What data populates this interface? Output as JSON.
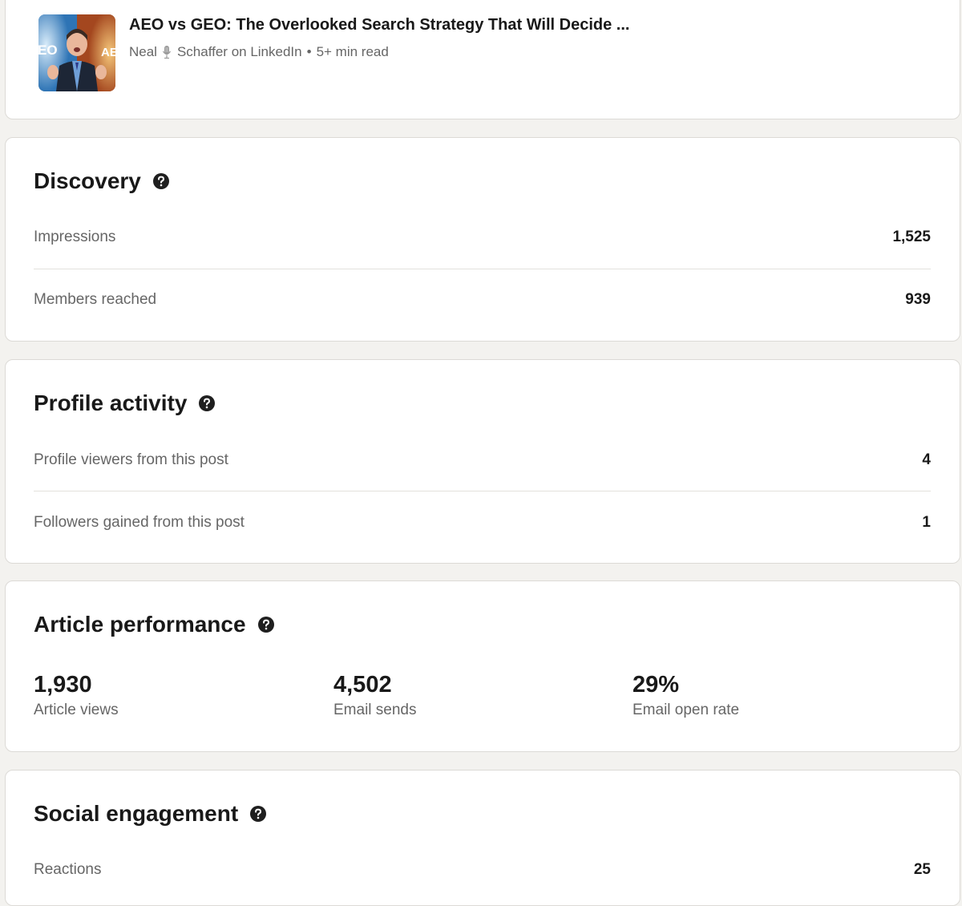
{
  "article": {
    "title": "AEO vs GEO: The Overlooked Search Strategy That Will Decide ...",
    "author_first": "Neal",
    "author_rest": "Schaffer on LinkedIn",
    "separator": "•",
    "read_time": "5+ min read",
    "thumbnail_left_text": "EO",
    "thumbnail_right_text": "AE"
  },
  "discovery": {
    "title": "Discovery",
    "rows": [
      {
        "label": "Impressions",
        "value": "1,525"
      },
      {
        "label": "Members reached",
        "value": "939"
      }
    ]
  },
  "profile_activity": {
    "title": "Profile activity",
    "rows": [
      {
        "label": "Profile viewers from this post",
        "value": "4"
      },
      {
        "label": "Followers gained from this post",
        "value": "1"
      }
    ]
  },
  "article_performance": {
    "title": "Article performance",
    "stats": [
      {
        "value": "1,930",
        "label": "Article views"
      },
      {
        "value": "4,502",
        "label": "Email sends"
      },
      {
        "value": "29%",
        "label": "Email open rate"
      }
    ]
  },
  "social_engagement": {
    "title": "Social engagement",
    "rows": [
      {
        "label": "Reactions",
        "value": "25"
      }
    ]
  },
  "icons": {
    "help": "question-circle-icon",
    "mic": "microphone-icon"
  },
  "colors": {
    "page_background": "#f3f2ef",
    "card_background": "#ffffff",
    "primary_text": "#191919",
    "secondary_text": "#666666"
  }
}
